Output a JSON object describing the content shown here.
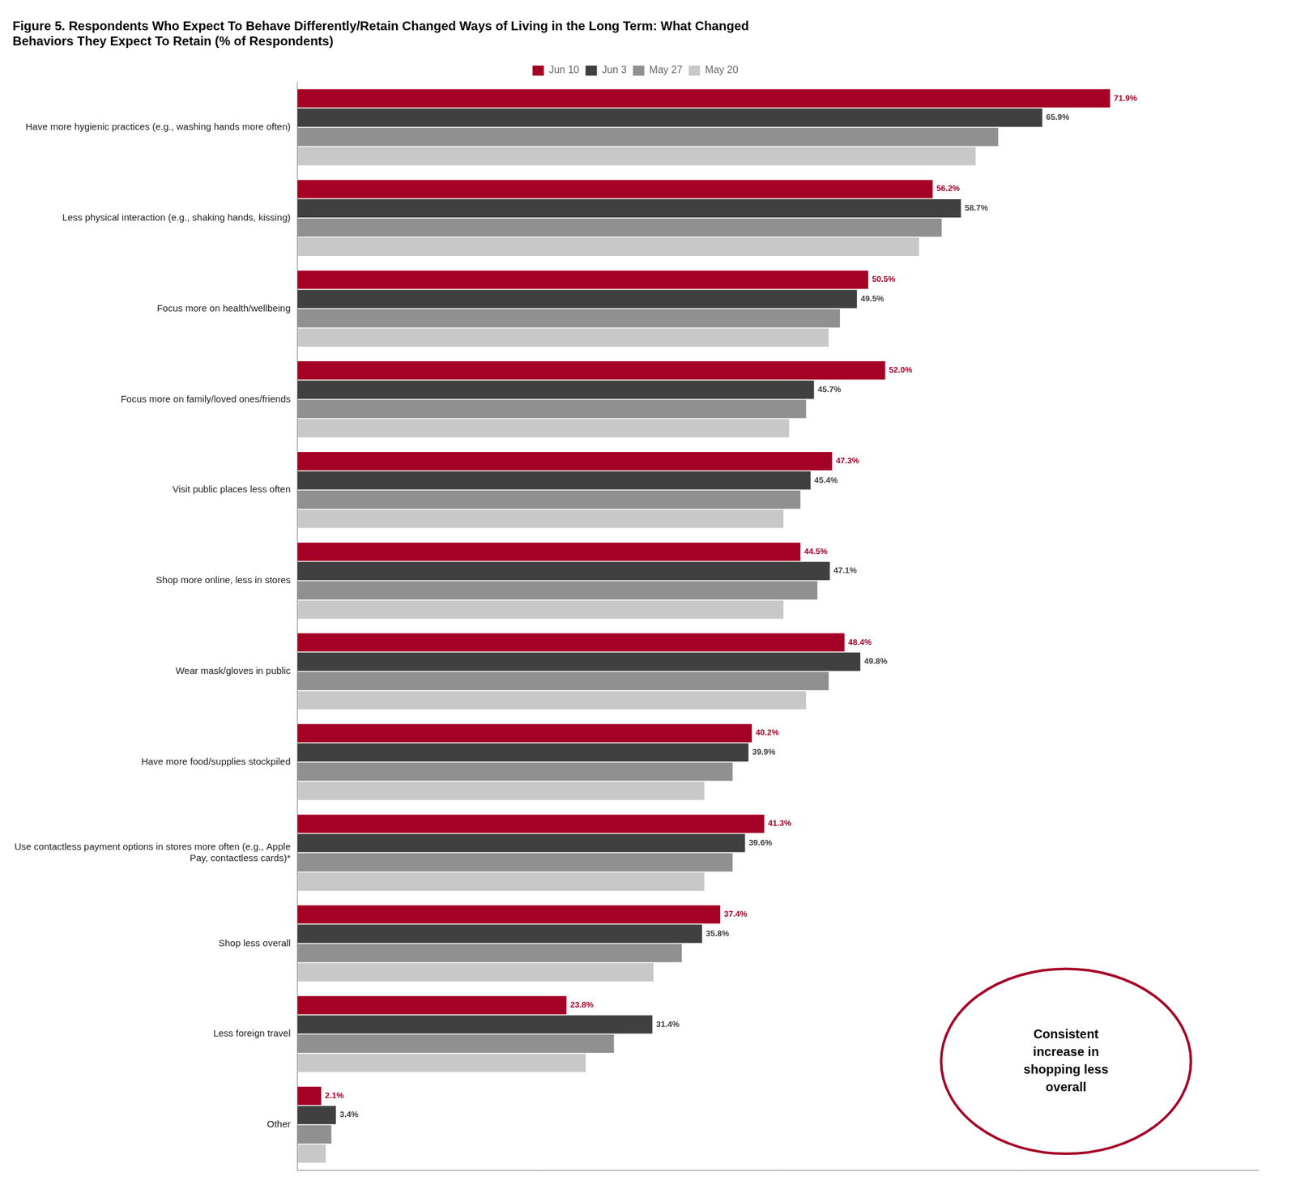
{
  "chart_data": {
    "type": "bar",
    "orientation": "horizontal",
    "title": "Figure 5. Respondents Who Expect To Behave Differently/Retain Changed Ways of Living in the Long Term: What Changed\nBehaviors They Expect To Retain (% of Respondents)",
    "categories": [
      "Have more hygienic practices (e.g., washing hands more often)",
      "Less physical interaction (e.g., shaking hands, kissing)",
      "Focus more on health/wellbeing",
      "Focus more on family/loved ones/friends",
      "Visit public places less often",
      "Shop more online, less in stores",
      "Wear mask/gloves in public",
      "Have more food/supplies stockpiled",
      "Use contactless payment options in stores more often (e.g., Apple\nPay, contactless cards)*",
      "Shop less overall",
      "Less foreign travel",
      "Other"
    ],
    "series": [
      {
        "name": "Jun 10",
        "color": "#A50026",
        "data_labels": true,
        "values": [
          71.9,
          56.2,
          50.5,
          52.0,
          47.3,
          44.5,
          48.4,
          40.2,
          41.3,
          37.4,
          23.8,
          2.1
        ],
        "value_labels": [
          "71.9%",
          "56.2%",
          "50.5%",
          "52.0%",
          "47.3%",
          "44.5%",
          "48.4%",
          "40.2%",
          "41.3%",
          "37.4%",
          "23.8%",
          "2.1%"
        ]
      },
      {
        "name": "Jun 3",
        "color": "#404040",
        "data_labels": true,
        "values": [
          65.9,
          58.7,
          49.5,
          45.7,
          45.4,
          47.1,
          49.8,
          39.9,
          39.6,
          35.8,
          31.4,
          3.4
        ],
        "value_labels": [
          "65.9%",
          "58.7%",
          "49.5%",
          "45.7%",
          "45.4%",
          "47.1%",
          "49.8%",
          "39.9%",
          "39.6%",
          "35.8%",
          "31.4%",
          "3.4%"
        ]
      },
      {
        "name": "May 27",
        "color": "#909090",
        "values": [
          62.0,
          57.0,
          48.0,
          45.0,
          44.5,
          46.0,
          47.0,
          38.5,
          38.5,
          34.0,
          28.0,
          3.0
        ]
      },
      {
        "name": "May 20",
        "color": "#C8C8C8",
        "values": [
          60.0,
          55.0,
          47.0,
          43.5,
          43.0,
          43.0,
          45.0,
          36.0,
          36.0,
          31.5,
          25.5,
          2.5
        ]
      }
    ],
    "xlim": [
      0,
      85
    ],
    "grid": false,
    "legend": "top",
    "tick_labels": "y",
    "annotations": [
      {
        "text": "Consistent\nincrease in\nshopping less\noverall",
        "color": "#A50026"
      }
    ]
  }
}
